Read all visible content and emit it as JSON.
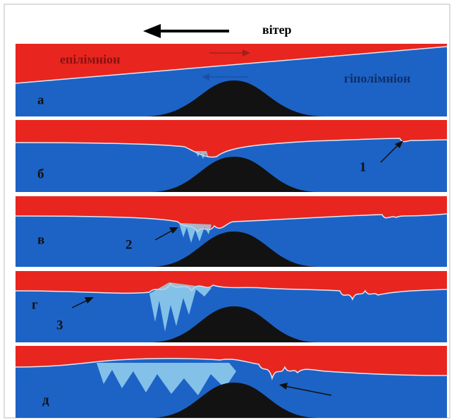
{
  "wind_label": "вітер",
  "panels": [
    {
      "label": "а",
      "upper_layer": "епілімніон",
      "lower_layer": "гіполімніон"
    },
    {
      "label": "б",
      "marker": "1"
    },
    {
      "label": "в",
      "marker": "2"
    },
    {
      "label": "г",
      "marker": "3"
    },
    {
      "label": "д"
    }
  ]
}
